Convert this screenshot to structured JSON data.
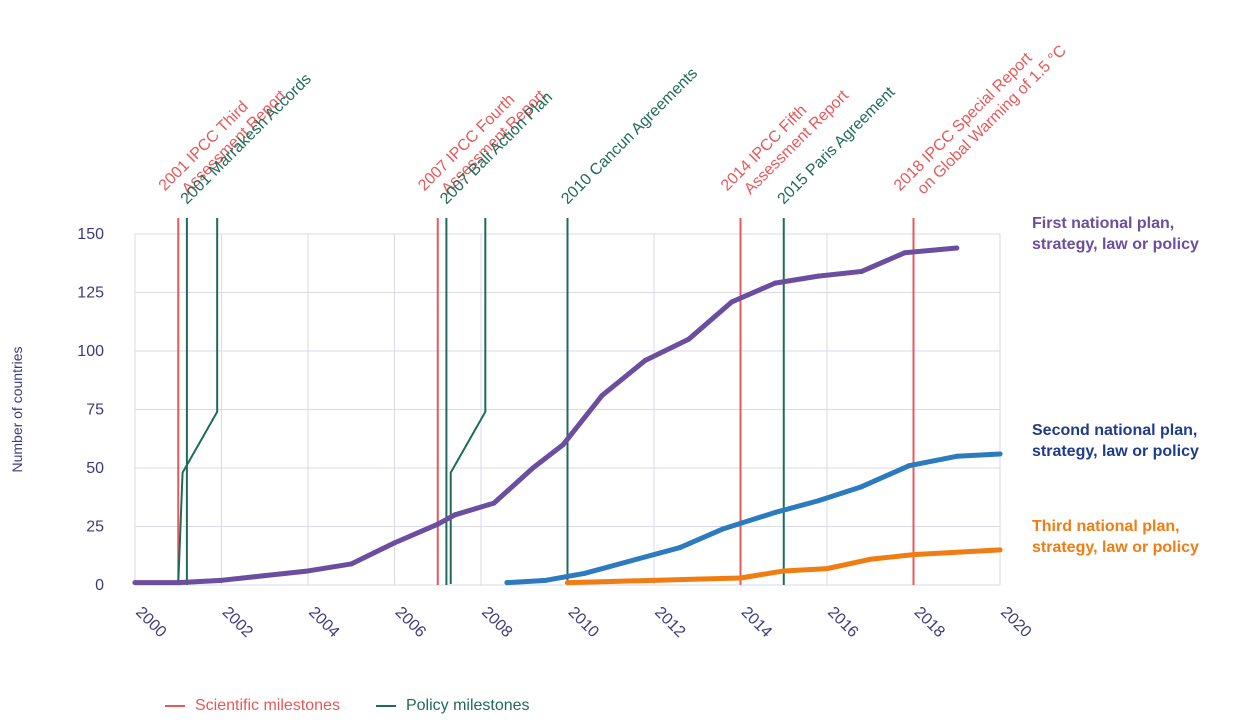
{
  "colors": {
    "scientific": "#e8585b",
    "policy": "#1f6b5a",
    "axis": "#3d3a7c",
    "grid": "#d9d9e8",
    "first": "#6b4ea0",
    "second": "#2c7bbf",
    "third": "#ef7d12",
    "second_label": "#1f3c8c",
    "third_label": "#ef7d12"
  },
  "legend": {
    "scientific_label": "Scientific milestones",
    "policy_label": "Policy milestones"
  },
  "series_labels": {
    "first": [
      "First national plan,",
      "strategy, law or policy"
    ],
    "second": [
      "Second national plan,",
      "strategy, law or policy"
    ],
    "third": [
      "Third national plan,",
      "strategy, law or policy"
    ]
  },
  "chart_data": {
    "type": "line",
    "title": "",
    "xlabel": "",
    "ylabel": "Number of countries",
    "xlim": [
      2000,
      2020
    ],
    "ylim": [
      0,
      150
    ],
    "x_ticks": [
      2000,
      2002,
      2004,
      2006,
      2008,
      2010,
      2012,
      2014,
      2016,
      2018,
      2020
    ],
    "y_ticks": [
      0,
      25,
      50,
      75,
      100,
      125,
      150
    ],
    "grid": true,
    "series": [
      {
        "name": "First national plan, strategy, law or policy",
        "color_key": "first",
        "points": [
          [
            2000,
            1
          ],
          [
            2001,
            1
          ],
          [
            2002,
            2
          ],
          [
            2003,
            4
          ],
          [
            2004,
            6
          ],
          [
            2005,
            9
          ],
          [
            2006,
            18
          ],
          [
            2007,
            26
          ],
          [
            2007.4,
            30
          ],
          [
            2008.3,
            35
          ],
          [
            2009.2,
            50
          ],
          [
            2009.9,
            60
          ],
          [
            2010.8,
            81
          ],
          [
            2011.8,
            96
          ],
          [
            2012.8,
            105
          ],
          [
            2013.8,
            121
          ],
          [
            2014.8,
            129
          ],
          [
            2015.8,
            132
          ],
          [
            2016.8,
            134
          ],
          [
            2017.8,
            142
          ],
          [
            2019,
            144
          ]
        ]
      },
      {
        "name": "Second national plan, strategy, law or policy",
        "color_key": "second",
        "points": [
          [
            2008.6,
            1
          ],
          [
            2009.5,
            2
          ],
          [
            2010.4,
            5
          ],
          [
            2011.6,
            11
          ],
          [
            2012.6,
            16
          ],
          [
            2013.6,
            24
          ],
          [
            2014.8,
            31
          ],
          [
            2015.8,
            36
          ],
          [
            2016.8,
            42
          ],
          [
            2017.9,
            51
          ],
          [
            2019,
            55
          ],
          [
            2020,
            56
          ]
        ]
      },
      {
        "name": "Third national plan, strategy, law or policy",
        "color_key": "third",
        "points": [
          [
            2010,
            1
          ],
          [
            2011,
            1.5
          ],
          [
            2012,
            2
          ],
          [
            2013,
            2.5
          ],
          [
            2014,
            3
          ],
          [
            2015,
            6
          ],
          [
            2016,
            7
          ],
          [
            2017,
            11
          ],
          [
            2018,
            13
          ],
          [
            2020,
            15
          ]
        ]
      }
    ],
    "milestones": [
      {
        "year": 2001,
        "kind": "scientific",
        "lines": [
          "2001 IPCC Third",
          "Assessment Report"
        ]
      },
      {
        "year": 2001.2,
        "kind": "policy",
        "lines": [
          "2001 Marrakesh Accords"
        ]
      },
      {
        "year": 2007,
        "kind": "scientific",
        "lines": [
          "2007 IPCC Fourth",
          "Assessment Report"
        ]
      },
      {
        "year": 2007.2,
        "kind": "policy",
        "lines": [
          "2007 Bali Action Plan"
        ]
      },
      {
        "year": 2010,
        "kind": "policy",
        "lines": [
          "2010 Cancun Agreements"
        ]
      },
      {
        "year": 2014,
        "kind": "scientific",
        "lines": [
          "2014 IPCC Fifth",
          "Assessment Report"
        ]
      },
      {
        "year": 2015,
        "kind": "policy",
        "lines": [
          "2015 Paris Agreement"
        ]
      },
      {
        "year": 2018,
        "kind": "scientific",
        "lines": [
          "2018 IPCC Special Report",
          "on Global Warming of 1.5 °C"
        ]
      }
    ]
  }
}
